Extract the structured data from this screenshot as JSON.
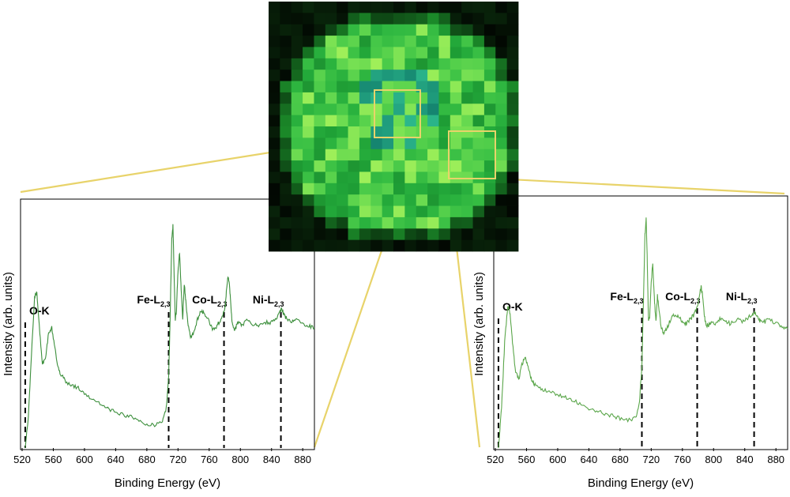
{
  "map_image": {
    "description_colors": {
      "low": "#050a05",
      "mid": "#2fb84a",
      "high": "#8fe06a",
      "cyan": "#2aa98a"
    },
    "highlight_color": "#e8d36a"
  },
  "chart_data": [
    {
      "type": "line",
      "panel": "left",
      "title": "",
      "xlabel": "Binding Energy (eV)",
      "ylabel": "Intensity (arb. units)",
      "xlim": [
        520,
        895
      ],
      "xticks": [
        520,
        560,
        600,
        640,
        680,
        720,
        760,
        800,
        840,
        880
      ],
      "ylim": [
        0,
        1
      ],
      "grid": false,
      "line_color": "#3c8f3c",
      "series": [
        {
          "x": [
            524,
            528,
            532,
            536,
            539,
            542,
            546,
            550,
            554,
            558,
            562,
            566,
            570,
            576,
            584,
            592,
            600,
            610,
            620,
            630,
            640,
            650,
            660,
            670,
            680,
            690,
            700,
            705,
            708,
            710,
            712,
            713.5,
            715,
            716.5,
            718,
            720,
            722,
            724,
            726,
            728,
            730,
            733,
            736,
            740,
            745,
            750,
            755,
            760,
            765,
            770,
            775,
            780,
            782,
            784,
            786,
            788,
            790,
            793,
            797,
            802,
            808,
            815,
            822,
            830,
            838,
            845,
            850,
            853,
            856,
            860,
            866,
            872,
            880,
            888,
            895
          ],
          "y": [
            0.0,
            0.14,
            0.42,
            0.68,
            0.7,
            0.55,
            0.38,
            0.4,
            0.52,
            0.54,
            0.45,
            0.36,
            0.33,
            0.3,
            0.28,
            0.27,
            0.24,
            0.22,
            0.2,
            0.18,
            0.16,
            0.15,
            0.14,
            0.12,
            0.11,
            0.1,
            0.12,
            0.18,
            0.32,
            0.6,
            0.95,
            1.0,
            0.78,
            0.58,
            0.62,
            0.8,
            0.88,
            0.72,
            0.58,
            0.74,
            0.66,
            0.55,
            0.5,
            0.52,
            0.58,
            0.62,
            0.6,
            0.57,
            0.53,
            0.55,
            0.58,
            0.62,
            0.7,
            0.77,
            0.74,
            0.63,
            0.55,
            0.53,
            0.57,
            0.55,
            0.58,
            0.56,
            0.55,
            0.57,
            0.56,
            0.58,
            0.61,
            0.63,
            0.6,
            0.58,
            0.57,
            0.58,
            0.56,
            0.55,
            0.54
          ]
        }
      ],
      "edges": [
        {
          "main": "O-K",
          "sub": "",
          "x": 524
        },
        {
          "main": "Fe-L",
          "sub": "2,3",
          "x": 708
        },
        {
          "main": "Co-L",
          "sub": "2,3",
          "x": 779
        },
        {
          "main": "Ni-L",
          "sub": "2,3",
          "x": 852
        }
      ]
    },
    {
      "type": "line",
      "panel": "right",
      "title": "",
      "xlabel": "Binding Energy (eV)",
      "ylabel": "Intensity (arb. units)",
      "xlim": [
        520,
        895
      ],
      "xticks": [
        520,
        560,
        600,
        640,
        680,
        720,
        760,
        800,
        840,
        880
      ],
      "ylim": [
        0,
        1
      ],
      "grid": false,
      "line_color": "#5aa64a",
      "series": [
        {
          "x": [
            524,
            528,
            532,
            536,
            539,
            542,
            546,
            550,
            554,
            558,
            562,
            566,
            570,
            576,
            584,
            592,
            600,
            610,
            620,
            630,
            640,
            650,
            660,
            670,
            680,
            690,
            700,
            705,
            708,
            710,
            712,
            713.5,
            715,
            716.5,
            718,
            720,
            722,
            724,
            726,
            728,
            730,
            733,
            736,
            740,
            745,
            750,
            755,
            760,
            765,
            770,
            775,
            780,
            782,
            784,
            786,
            788,
            790,
            793,
            797,
            802,
            808,
            815,
            822,
            830,
            838,
            845,
            850,
            853,
            856,
            860,
            866,
            872,
            880,
            888,
            895
          ],
          "y": [
            0.0,
            0.18,
            0.46,
            0.62,
            0.58,
            0.46,
            0.33,
            0.3,
            0.36,
            0.4,
            0.35,
            0.3,
            0.28,
            0.26,
            0.25,
            0.24,
            0.23,
            0.22,
            0.21,
            0.19,
            0.17,
            0.16,
            0.15,
            0.14,
            0.13,
            0.12,
            0.13,
            0.2,
            0.36,
            0.64,
            0.93,
            1.0,
            0.8,
            0.55,
            0.57,
            0.72,
            0.8,
            0.65,
            0.55,
            0.66,
            0.6,
            0.52,
            0.5,
            0.52,
            0.56,
            0.58,
            0.57,
            0.55,
            0.54,
            0.56,
            0.58,
            0.62,
            0.67,
            0.7,
            0.66,
            0.58,
            0.54,
            0.53,
            0.55,
            0.54,
            0.56,
            0.55,
            0.54,
            0.56,
            0.55,
            0.57,
            0.58,
            0.59,
            0.57,
            0.55,
            0.55,
            0.56,
            0.54,
            0.53,
            0.52
          ]
        }
      ],
      "edges": [
        {
          "main": "O-K",
          "sub": "",
          "x": 524
        },
        {
          "main": "Fe-L",
          "sub": "2,3",
          "x": 708
        },
        {
          "main": "Co-L",
          "sub": "2,3",
          "x": 779
        },
        {
          "main": "Ni-L",
          "sub": "2,3",
          "x": 852
        }
      ]
    }
  ]
}
